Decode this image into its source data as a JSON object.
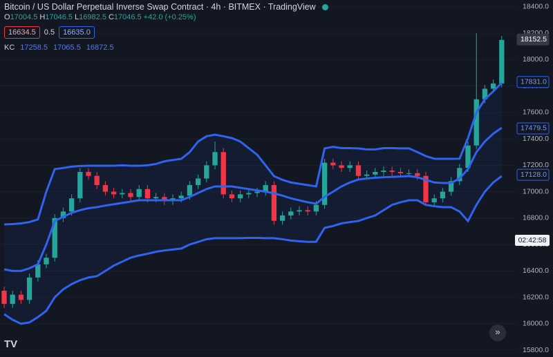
{
  "chart_data": {
    "type": "candlestick",
    "title": "Bitcoin / US Dollar Perpetual Inverse Swap Contract · 4h · BITMEX · TradingView",
    "ohlc_legend": [
      {
        "key": "O",
        "value": "17004.5"
      },
      {
        "key": "H",
        "value": "17046.5"
      },
      {
        "key": "L",
        "value": "16982.5"
      },
      {
        "key": "C",
        "value": "17046.5"
      }
    ],
    "change": "+42.0 (+0.25%)",
    "sell": "16634.5",
    "spread": "0.5",
    "buy": "16635.0",
    "indicator": {
      "name": "KC",
      "values": [
        "17258.5",
        "17065.5",
        "16872.5"
      ]
    },
    "up_color": "#26a69a",
    "down_color": "#f23645",
    "open": [
      16250,
      16150,
      16220,
      16180,
      16350,
      16450,
      16500,
      16800,
      16850,
      16950,
      17150,
      17120,
      17050,
      17000,
      16980,
      16990,
      16960,
      17020,
      16950,
      16960,
      16930,
      16950,
      16970,
      17050,
      17100,
      17200,
      17300,
      16980,
      16950,
      16980,
      16990,
      17000,
      17050,
      16780,
      16820,
      16850,
      16860,
      16850,
      16900,
      17220,
      17200,
      17180,
      17200,
      17120,
      17130,
      17150,
      17160,
      17150,
      17140,
      17140,
      17120,
      16920,
      16950,
      17000,
      17080,
      17180,
      17350,
      17700,
      17780,
      17820
    ],
    "high": [
      16280,
      16250,
      16250,
      16380,
      16480,
      16530,
      16830,
      16880,
      16980,
      17180,
      17180,
      17150,
      17080,
      17030,
      17020,
      17020,
      17050,
      17050,
      16990,
      16990,
      16980,
      17000,
      17080,
      17130,
      17230,
      17380,
      17330,
      17010,
      17010,
      17020,
      17030,
      17080,
      17080,
      16850,
      16880,
      16890,
      16890,
      16930,
      17250,
      17250,
      17230,
      17230,
      17230,
      17160,
      17180,
      17190,
      17190,
      17180,
      17170,
      17170,
      17150,
      16980,
      17030,
      17110,
      17210,
      17380,
      18200,
      17810,
      17850,
      18180
    ],
    "low": [
      16120,
      16120,
      16150,
      16150,
      16320,
      16420,
      16470,
      16770,
      16820,
      16920,
      17090,
      17020,
      16970,
      16950,
      16950,
      16930,
      16930,
      16920,
      16920,
      16900,
      16900,
      16920,
      16940,
      17020,
      17070,
      17170,
      16950,
      16920,
      16920,
      16950,
      16960,
      16970,
      16750,
      16750,
      16790,
      16820,
      16820,
      16820,
      16870,
      17170,
      17150,
      17150,
      17090,
      17090,
      17100,
      17120,
      17120,
      17110,
      17110,
      17090,
      16890,
      16890,
      16920,
      16970,
      17050,
      17150,
      17320,
      17670,
      17750,
      17790
    ],
    "close": [
      16150,
      16220,
      16180,
      16350,
      16450,
      16500,
      16800,
      16850,
      16950,
      17150,
      17120,
      17050,
      17000,
      16980,
      16990,
      16960,
      17020,
      16950,
      16960,
      16930,
      16950,
      16970,
      17050,
      17100,
      17200,
      17300,
      16980,
      16950,
      16980,
      16990,
      17000,
      17050,
      16780,
      16820,
      16850,
      16860,
      16850,
      16900,
      17220,
      17200,
      17180,
      17200,
      17120,
      17130,
      17150,
      17160,
      17150,
      17140,
      17140,
      17120,
      16920,
      16950,
      17000,
      17080,
      17180,
      17350,
      17700,
      17780,
      17820,
      18150
    ],
    "series": [
      {
        "color": "#2f63f0",
        "values": [
          16752,
          16755,
          16760,
          16770,
          16790,
          17000,
          17171,
          17180,
          17190,
          17195,
          17197,
          17197,
          17197,
          17197,
          17200,
          17197,
          17197,
          17200,
          17210,
          17230,
          17240,
          17249,
          17300,
          17380,
          17420,
          17432,
          17420,
          17406,
          17380,
          17330,
          17280,
          17200,
          17118,
          17090,
          17070,
          17060,
          17050,
          17040,
          17328,
          17340,
          17330,
          17330,
          17328,
          17320,
          17320,
          17330,
          17330,
          17328,
          17328,
          17300,
          17270,
          17250,
          17249,
          17249,
          17250,
          17406,
          17600,
          17700,
          17760,
          17825
        ]
      },
      {
        "color": "#2f63f0",
        "values": [
          16412,
          16400,
          16400,
          16420,
          16450,
          16600,
          16778,
          16810,
          16840,
          16860,
          16875,
          16883,
          16895,
          16905,
          16915,
          16925,
          16935,
          16935,
          16935,
          16935,
          16935,
          16935,
          16960,
          16990,
          17020,
          17040,
          17040,
          17040,
          17030,
          17020,
          17010,
          17000,
          16988,
          16970,
          16950,
          16935,
          16920,
          16909,
          16961,
          17000,
          17040,
          17070,
          17092,
          17100,
          17105,
          17110,
          17112,
          17115,
          17118,
          17110,
          17090,
          17070,
          17066,
          17066,
          17100,
          17171,
          17300,
          17380,
          17440,
          17484
        ]
      },
      {
        "color": "#2f63f0",
        "values": [
          16072,
          16030,
          16000,
          16010,
          16050,
          16098,
          16200,
          16260,
          16300,
          16330,
          16350,
          16360,
          16400,
          16440,
          16470,
          16500,
          16517,
          16530,
          16545,
          16555,
          16562,
          16569,
          16600,
          16620,
          16640,
          16648,
          16648,
          16648,
          16648,
          16650,
          16650,
          16648,
          16648,
          16640,
          16630,
          16625,
          16620,
          16621,
          16726,
          16740,
          16760,
          16770,
          16778,
          16800,
          16820,
          16860,
          16900,
          16920,
          16935,
          16935,
          16900,
          16890,
          16883,
          16883,
          16850,
          16778,
          16900,
          17000,
          17070,
          17118
        ]
      }
    ],
    "ylim": [
      15748,
      18452
    ],
    "yticks": [
      {
        "value": 15800,
        "label": "15800.0"
      },
      {
        "value": 16000,
        "label": "16000.0"
      },
      {
        "value": 16200,
        "label": "16200.0"
      },
      {
        "value": 16400,
        "label": "16400.0"
      },
      {
        "value": 16600,
        "label": "16600.0"
      },
      {
        "value": 16800,
        "label": "16800.0"
      },
      {
        "value": 17000,
        "label": "17000.0"
      },
      {
        "value": 17200,
        "label": "17200.0"
      },
      {
        "value": 17400,
        "label": "17400.0"
      },
      {
        "value": 17600,
        "label": "17600.0"
      },
      {
        "value": 17800,
        "label": "17800.0"
      },
      {
        "value": 18000,
        "label": "18000.0"
      },
      {
        "value": 18200,
        "label": "18200.0"
      },
      {
        "value": 18400,
        "label": "18400.0"
      }
    ],
    "price_labels": [
      {
        "value": 18152.5,
        "label": "18152.5",
        "color": "#363a45"
      },
      {
        "value": 17831,
        "label": "17831.0",
        "color": "#2f63f0"
      },
      {
        "value": 17479.5,
        "label": "17479.5",
        "color": "#2f63f0"
      },
      {
        "value": 17128,
        "label": "17128.0",
        "color": "#2f63f0"
      }
    ],
    "countdown": "02:42:58",
    "grid": true
  }
}
